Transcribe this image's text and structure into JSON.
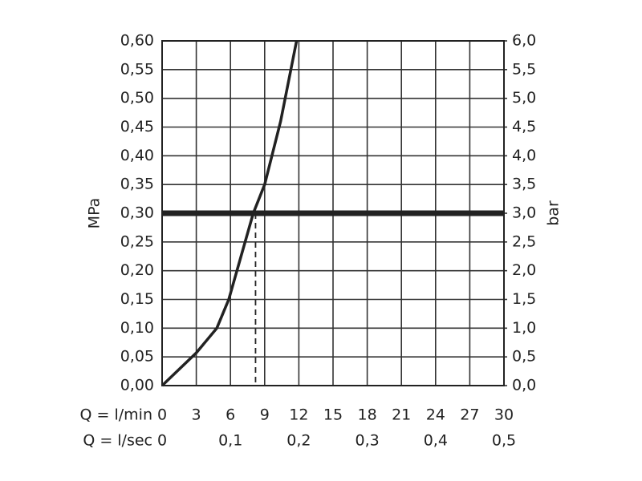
{
  "chart_data": {
    "type": "line",
    "y_label": "MPa",
    "y2_label": "bar",
    "x_label": "Q = l/min",
    "x2_label": "Q = l/sec",
    "x": [
      0,
      3,
      4.8,
      5.85,
      8.0,
      9.0,
      10.4,
      11.8
    ],
    "y": [
      0,
      0.057,
      0.1,
      0.15,
      0.3,
      0.35,
      0.46,
      0.6
    ],
    "color": "#222222",
    "hline": 0.3,
    "vline": 8.2,
    "xlim": [
      0,
      30
    ],
    "xticks": [
      0,
      3,
      6,
      9,
      12,
      15,
      18,
      21,
      24,
      27,
      30
    ],
    "x2lim": [
      0,
      0.5
    ],
    "x2ticks": [
      0,
      {
        "value": 0.1,
        "label": "0,1"
      },
      {
        "value": 0.2,
        "label": "0,2"
      },
      {
        "value": 0.3,
        "label": "0,3"
      },
      {
        "value": 0.4,
        "label": "0,4"
      },
      {
        "value": 0.5,
        "label": "0,5"
      }
    ],
    "ylim": [
      0,
      0.6
    ],
    "yticks": [
      {
        "value": 0,
        "label": "0,00"
      },
      {
        "value": 0.05,
        "label": "0,05"
      },
      {
        "value": 0.1,
        "label": "0,10"
      },
      {
        "value": 0.15,
        "label": "0,15"
      },
      {
        "value": 0.2,
        "label": "0,20"
      },
      {
        "value": 0.25,
        "label": "0,25"
      },
      {
        "value": 0.3,
        "label": "0,30"
      },
      {
        "value": 0.35,
        "label": "0,35"
      },
      {
        "value": 0.4,
        "label": "0,40"
      },
      {
        "value": 0.45,
        "label": "0,45"
      },
      {
        "value": 0.5,
        "label": "0,50"
      },
      {
        "value": 0.55,
        "label": "0,55"
      },
      {
        "value": 0.6,
        "label": "0,60"
      }
    ],
    "y2lim": [
      0,
      6
    ],
    "y2ticks": [
      {
        "value": 0,
        "label": "0,0"
      },
      {
        "value": 0.5,
        "label": "0,5"
      },
      {
        "value": 1,
        "label": "1,0"
      },
      {
        "value": 1.5,
        "label": "1,5"
      },
      {
        "value": 2,
        "label": "2,0"
      },
      {
        "value": 2.5,
        "label": "2,5"
      },
      {
        "value": 3,
        "label": "3,0"
      },
      {
        "value": 3.5,
        "label": "3,5"
      },
      {
        "value": 4,
        "label": "4,0"
      },
      {
        "value": 4.5,
        "label": "4,5"
      },
      {
        "value": 5,
        "label": "5,0"
      },
      {
        "value": 5.5,
        "label": "5,5"
      },
      {
        "value": 6,
        "label": "6,0"
      }
    ],
    "grid": true
  }
}
